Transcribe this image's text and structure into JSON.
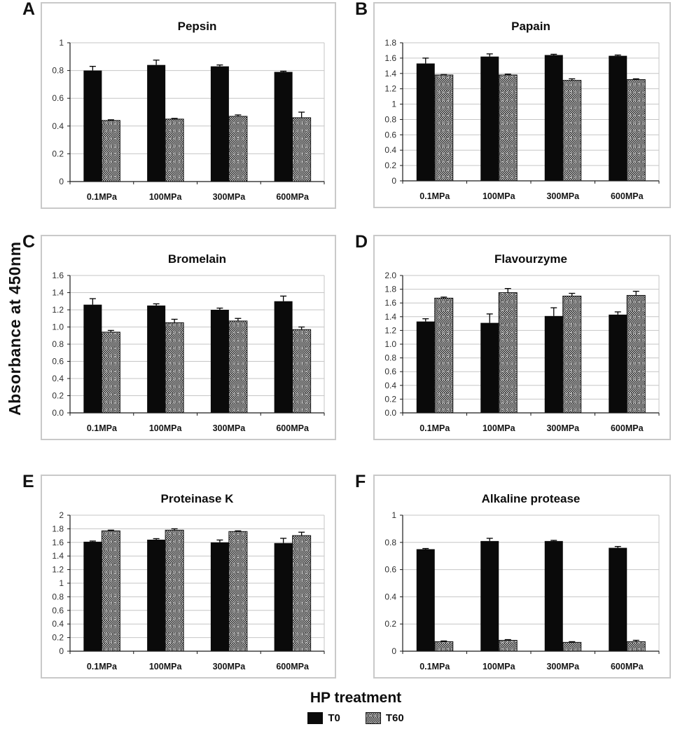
{
  "figure": {
    "ylabel": "Absorbance at 450nm",
    "xlabel": "HP treatment",
    "legend": [
      {
        "label": "T0",
        "swatch": "solid-black"
      },
      {
        "label": "T60",
        "swatch": "checker-weave-pattern"
      }
    ],
    "colors": {
      "bar_t0": "#0a0a0a",
      "pattern_dark": "#161616",
      "pattern_light": "#d9d9d9",
      "grid": "#c6c6c6",
      "axis": "#1a1a1a",
      "panel_border": "#c9c9c9",
      "tick_text": "#2e2e2e"
    }
  },
  "chart_data": [
    {
      "type": "bar",
      "panel": "A",
      "title": "Pepsin",
      "categories": [
        "0.1MPa",
        "100MPa",
        "300MPa",
        "600MPa"
      ],
      "ylim": [
        0,
        1.0
      ],
      "yticks": [
        "1",
        "0.8",
        "0.6",
        "0.4",
        "0.2",
        "0"
      ],
      "grid": true,
      "legend_position": "none",
      "series": [
        {
          "name": "T0",
          "values": [
            0.8,
            0.84,
            0.83,
            0.79
          ],
          "errors": [
            0.03,
            0.035,
            0.01,
            0.005
          ]
        },
        {
          "name": "T60",
          "values": [
            0.44,
            0.45,
            0.47,
            0.46
          ],
          "errors": [
            0.005,
            0.005,
            0.01,
            0.04
          ]
        }
      ]
    },
    {
      "type": "bar",
      "panel": "B",
      "title": "Papain",
      "categories": [
        "0.1MPa",
        "100MPa",
        "300MPa",
        "600MPa"
      ],
      "ylim": [
        0,
        1.8
      ],
      "yticks": [
        "1.8",
        "1.6",
        "1.4",
        "1.2",
        "1",
        "0.8",
        "0.6",
        "0.4",
        "0.2",
        "0"
      ],
      "grid": true,
      "legend_position": "none",
      "series": [
        {
          "name": "T0",
          "values": [
            1.53,
            1.62,
            1.64,
            1.63
          ],
          "errors": [
            0.07,
            0.035,
            0.01,
            0.01
          ]
        },
        {
          "name": "T60",
          "values": [
            1.38,
            1.38,
            1.31,
            1.32
          ],
          "errors": [
            0.005,
            0.01,
            0.02,
            0.01
          ]
        }
      ]
    },
    {
      "type": "bar",
      "panel": "C",
      "title": "Bromelain",
      "categories": [
        "0.1MPa",
        "100MPa",
        "300MPa",
        "600MPa"
      ],
      "ylim": [
        0,
        1.6
      ],
      "yticks": [
        "1.6",
        "1.4",
        "1.2",
        "1.0",
        "0.8",
        "0.6",
        "0.4",
        "0.2",
        "0.0"
      ],
      "grid": true,
      "legend_position": "none",
      "series": [
        {
          "name": "T0",
          "values": [
            1.26,
            1.25,
            1.2,
            1.3
          ],
          "errors": [
            0.07,
            0.02,
            0.02,
            0.06
          ]
        },
        {
          "name": "T60",
          "values": [
            0.94,
            1.05,
            1.07,
            0.97
          ],
          "errors": [
            0.02,
            0.04,
            0.03,
            0.03
          ]
        }
      ]
    },
    {
      "type": "bar",
      "panel": "D",
      "title": "Flavourzyme",
      "categories": [
        "0.1MPa",
        "100MPa",
        "300MPa",
        "600MPa"
      ],
      "ylim": [
        0,
        2.0
      ],
      "yticks": [
        "2.0",
        "1.8",
        "1.6",
        "1.4",
        "1.2",
        "1.0",
        "0.8",
        "0.6",
        "0.4",
        "0.2",
        "0.0"
      ],
      "grid": true,
      "legend_position": "none",
      "series": [
        {
          "name": "T0",
          "values": [
            1.33,
            1.31,
            1.41,
            1.43
          ],
          "errors": [
            0.04,
            0.13,
            0.12,
            0.04
          ]
        },
        {
          "name": "T60",
          "values": [
            1.67,
            1.75,
            1.7,
            1.71
          ],
          "errors": [
            0.015,
            0.06,
            0.04,
            0.06
          ]
        }
      ]
    },
    {
      "type": "bar",
      "panel": "E",
      "title": "Proteinase K",
      "categories": [
        "0.1MPa",
        "100MPa",
        "300MPa",
        "600MPa"
      ],
      "ylim": [
        0,
        2.0
      ],
      "yticks": [
        "2",
        "1.8",
        "1.6",
        "1.4",
        "1.2",
        "1",
        "0.8",
        "0.6",
        "0.4",
        "0.2",
        "0"
      ],
      "grid": true,
      "legend_position": "none",
      "series": [
        {
          "name": "T0",
          "values": [
            1.61,
            1.64,
            1.6,
            1.59
          ],
          "errors": [
            0.01,
            0.015,
            0.035,
            0.07
          ]
        },
        {
          "name": "T60",
          "values": [
            1.77,
            1.78,
            1.76,
            1.7
          ],
          "errors": [
            0.01,
            0.02,
            0.01,
            0.05
          ]
        }
      ]
    },
    {
      "type": "bar",
      "panel": "F",
      "title": "Alkaline protease",
      "categories": [
        "0.1MPa",
        "100MPa",
        "300MPa",
        "600MPa"
      ],
      "ylim": [
        0,
        1.0
      ],
      "yticks": [
        "1",
        "0.8",
        "0.6",
        "0.4",
        "0.2",
        "0"
      ],
      "grid": true,
      "legend_position": "none",
      "series": [
        {
          "name": "T0",
          "values": [
            0.75,
            0.81,
            0.81,
            0.76
          ],
          "errors": [
            0.005,
            0.02,
            0.005,
            0.01
          ]
        },
        {
          "name": "T60",
          "values": [
            0.07,
            0.08,
            0.065,
            0.07
          ],
          "errors": [
            0.005,
            0.005,
            0.005,
            0.01
          ]
        }
      ]
    }
  ]
}
